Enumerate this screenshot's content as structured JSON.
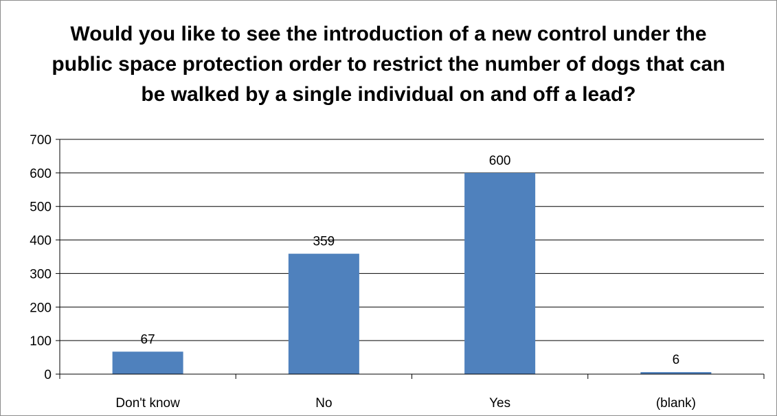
{
  "chart_data": {
    "type": "bar",
    "title_lines": [
      "Would you like to see the introduction of a new control under the",
      "public space protection order to restrict the number of dogs that can",
      "be walked by a single individual on and off a lead?"
    ],
    "xlabel": "",
    "ylabel": "",
    "categories": [
      "Don't know",
      "No",
      "Yes",
      "(blank)"
    ],
    "values": [
      67,
      359,
      600,
      6
    ],
    "data_labels": [
      "67",
      "359",
      "600",
      "6"
    ],
    "ylim": [
      0,
      700
    ],
    "yticks": [
      0,
      100,
      200,
      300,
      400,
      500,
      600,
      700
    ],
    "ytick_labels": [
      "0",
      "100",
      "200",
      "300",
      "400",
      "500",
      "600",
      "700"
    ],
    "grid": true,
    "legend": "none",
    "colors": {
      "bar": "#4f81bd",
      "grid": "#000000",
      "axis": "#000000",
      "text": "#000000",
      "border": "#8c8c8c"
    }
  }
}
